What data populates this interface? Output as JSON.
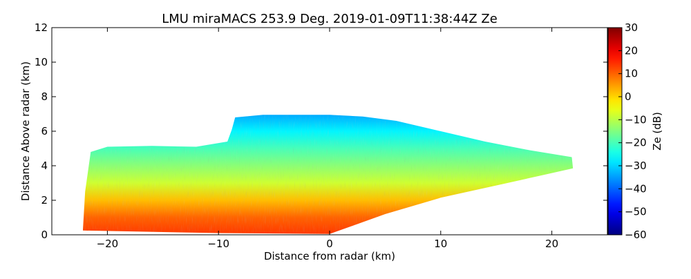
{
  "figure": {
    "title": "LMU miraMACS 253.9 Deg. 2019-01-09T11:38:44Z  Ze"
  },
  "chart_data": {
    "type": "heatmap",
    "title": "LMU miraMACS 253.9 Deg. 2019-01-09T11:38:44Z  Ze",
    "xlabel": "Distance from radar (km)",
    "ylabel": "Distance Above radar  (km)",
    "xlim": [
      -25,
      25
    ],
    "ylim": [
      0,
      12
    ],
    "xticks": [
      -20,
      -10,
      0,
      10,
      20
    ],
    "xtick_labels": [
      "−20",
      "−10",
      "0",
      "10",
      "20"
    ],
    "yticks": [
      0,
      2,
      4,
      6,
      8,
      10,
      12
    ],
    "ytick_labels": [
      "0",
      "2",
      "4",
      "6",
      "8",
      "10",
      "12"
    ],
    "grid": false,
    "colorbar": {
      "label": "Ze (dB)",
      "range": [
        -60,
        30
      ],
      "ticks": [
        -60,
        -50,
        -40,
        -30,
        -20,
        -10,
        0,
        10,
        20,
        30
      ],
      "tick_labels": [
        "−60",
        "−50",
        "−40",
        "−30",
        "−20",
        "−10",
        "0",
        "10",
        "20",
        "30"
      ],
      "colormap": "jet"
    },
    "echo_region": {
      "description_points_km": [
        [
          -22.2,
          0.3
        ],
        [
          -22.0,
          2.5
        ],
        [
          -21.5,
          4.8
        ],
        [
          -20,
          5.1
        ],
        [
          -16,
          5.15
        ],
        [
          -12,
          5.1
        ],
        [
          -9.2,
          5.4
        ],
        [
          -8.8,
          6.1
        ],
        [
          -8.5,
          6.8
        ],
        [
          -6,
          6.95
        ],
        [
          -3,
          6.95
        ],
        [
          0,
          6.95
        ],
        [
          3,
          6.85
        ],
        [
          6,
          6.6
        ],
        [
          10,
          6.0
        ],
        [
          14,
          5.4
        ],
        [
          18,
          4.9
        ],
        [
          21.8,
          4.5
        ],
        [
          21.9,
          3.85
        ],
        [
          16,
          3.0
        ],
        [
          10,
          2.15
        ],
        [
          5,
          1.2
        ],
        [
          0,
          0.05
        ],
        [
          -10,
          0.1
        ],
        [
          -22.2,
          0.25
        ]
      ],
      "ze_by_height_km": [
        [
          0.0,
          14
        ],
        [
          1.0,
          10
        ],
        [
          2.0,
          2
        ],
        [
          3.0,
          -8
        ],
        [
          4.0,
          -14
        ],
        [
          5.0,
          -20
        ],
        [
          6.0,
          -27
        ],
        [
          7.0,
          -34
        ]
      ]
    }
  }
}
